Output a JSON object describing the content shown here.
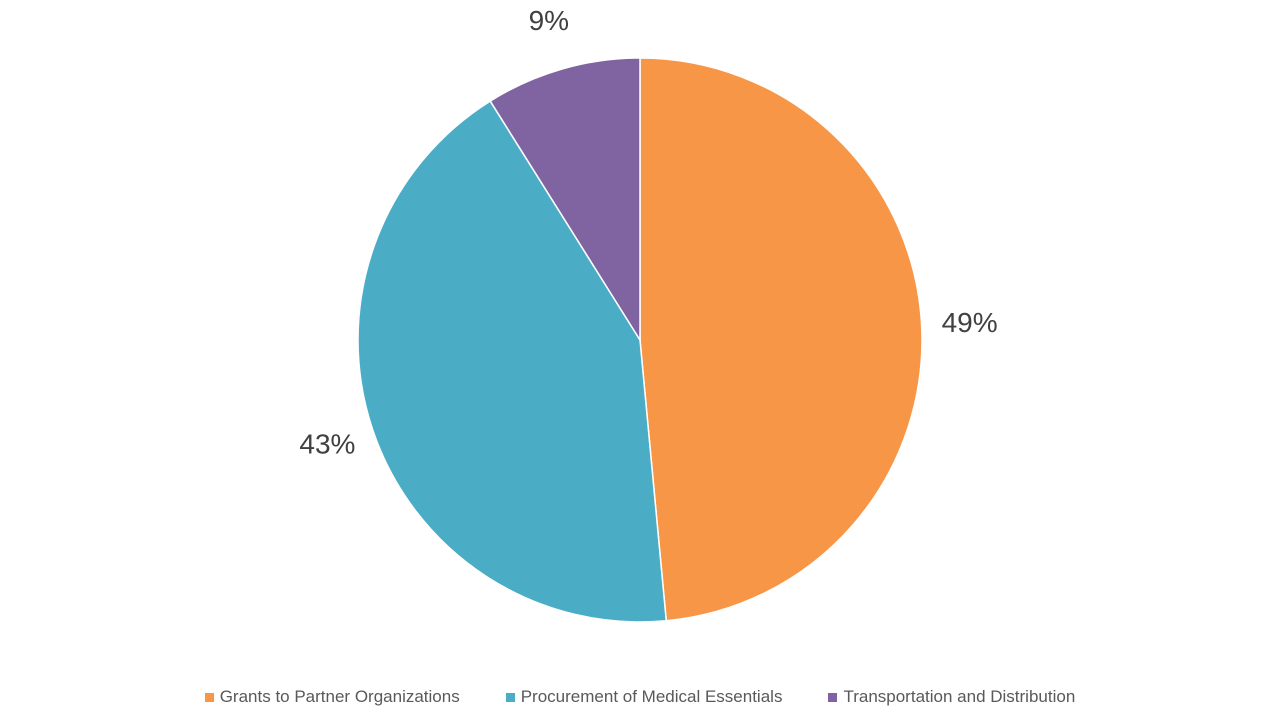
{
  "chart_data": {
    "type": "pie",
    "title": "",
    "categories": [
      "Grants to Partner Organizations",
      "Procurement of Medical Essentials",
      "Transportation and Distribution"
    ],
    "values": [
      49,
      43,
      9
    ],
    "labels": [
      "49%",
      "43%",
      "9%"
    ],
    "unit": "%",
    "colors": [
      "#F79646",
      "#4BACC6",
      "#8064A2"
    ],
    "start_angle_deg": 0,
    "direction": "clockwise",
    "slice_border_color": "#FFFFFF",
    "legend_position": "bottom"
  }
}
